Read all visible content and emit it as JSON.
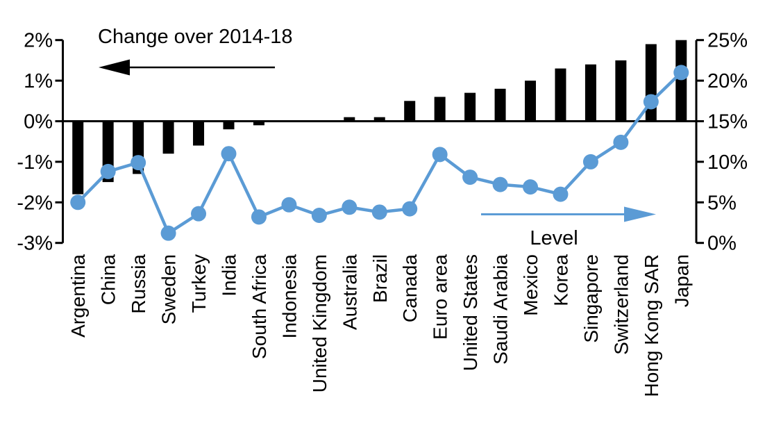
{
  "chart_data": {
    "type": "bar",
    "subtype": "bar-line-combo",
    "categories": [
      "Argentina",
      "China",
      "Russia",
      "Sweden",
      "Turkey",
      "India",
      "South Africa",
      "Indonesia",
      "United Kingdom",
      "Australia",
      "Brazil",
      "Canada",
      "Euro area",
      "United States",
      "Saudi Arabia",
      "Mexico",
      "Korea",
      "Singapore",
      "Switzerland",
      "Hong Kong SAR",
      "Japan"
    ],
    "series": [
      {
        "name": "Change over 2014-18",
        "type": "bar",
        "axis": "left",
        "color": "#000000",
        "values": [
          -1.8,
          -1.5,
          -1.3,
          -0.8,
          -0.6,
          -0.2,
          -0.1,
          0.0,
          0.0,
          0.1,
          0.1,
          0.5,
          0.6,
          0.7,
          0.8,
          1.0,
          1.3,
          1.4,
          1.5,
          1.9,
          2.0
        ]
      },
      {
        "name": "Level",
        "type": "line",
        "axis": "right",
        "color": "#5B9BD5",
        "values": [
          5.0,
          8.8,
          9.9,
          1.2,
          3.6,
          11.0,
          3.2,
          4.7,
          3.4,
          4.4,
          3.8,
          4.2,
          10.9,
          8.1,
          7.2,
          6.9,
          6.0,
          10.0,
          12.4,
          17.4,
          21.0
        ]
      }
    ],
    "left_axis": {
      "labels": [
        "2%",
        "1%",
        "0%",
        "-1%",
        "-2%",
        "-3%"
      ],
      "values": [
        2,
        1,
        0,
        -1,
        -2,
        -3
      ],
      "min": -3,
      "max": 2
    },
    "right_axis": {
      "labels": [
        "25%",
        "20%",
        "15%",
        "10%",
        "5%",
        "0%"
      ],
      "values": [
        25,
        20,
        15,
        10,
        5,
        0
      ],
      "min": 0,
      "max": 25
    },
    "annotations": {
      "bar_label": {
        "text": "Change over 2014-18",
        "arrow_direction": "left",
        "color": "#000000"
      },
      "line_label": {
        "text": "Level",
        "arrow_direction": "right",
        "color": "#5B9BD5"
      }
    },
    "grid": false,
    "legend_position": "none",
    "background": "#ffffff"
  }
}
